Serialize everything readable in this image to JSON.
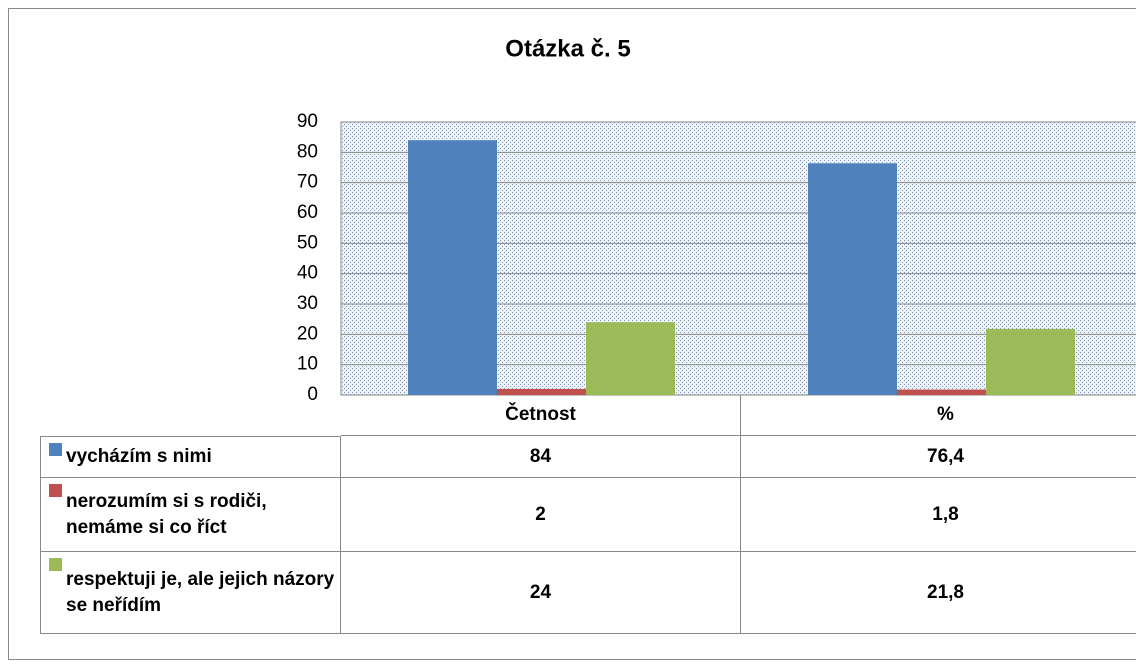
{
  "chart_data": {
    "type": "bar",
    "title": "Otázka č. 5",
    "categories": [
      "Četnost",
      "%"
    ],
    "series": [
      {
        "name": "vycházím s nimi",
        "color": "#4f81bd",
        "values": [
          84,
          76.4
        ],
        "value_labels": [
          "84",
          "76,4"
        ]
      },
      {
        "name": "nerozumím si s rodiči, nemáme si co říct",
        "color": "#c0504d",
        "values": [
          2,
          1.8
        ],
        "value_labels": [
          "2",
          "1,8"
        ]
      },
      {
        "name": "respektuji je, ale jejich názory se neřídím",
        "color": "#9bbb59",
        "values": [
          24,
          21.8
        ],
        "value_labels": [
          "24",
          "21,8"
        ]
      }
    ],
    "ylim": [
      0,
      90
    ],
    "yticks": [
      0,
      10,
      20,
      30,
      40,
      50,
      60,
      70,
      80,
      90
    ],
    "grid": true
  }
}
